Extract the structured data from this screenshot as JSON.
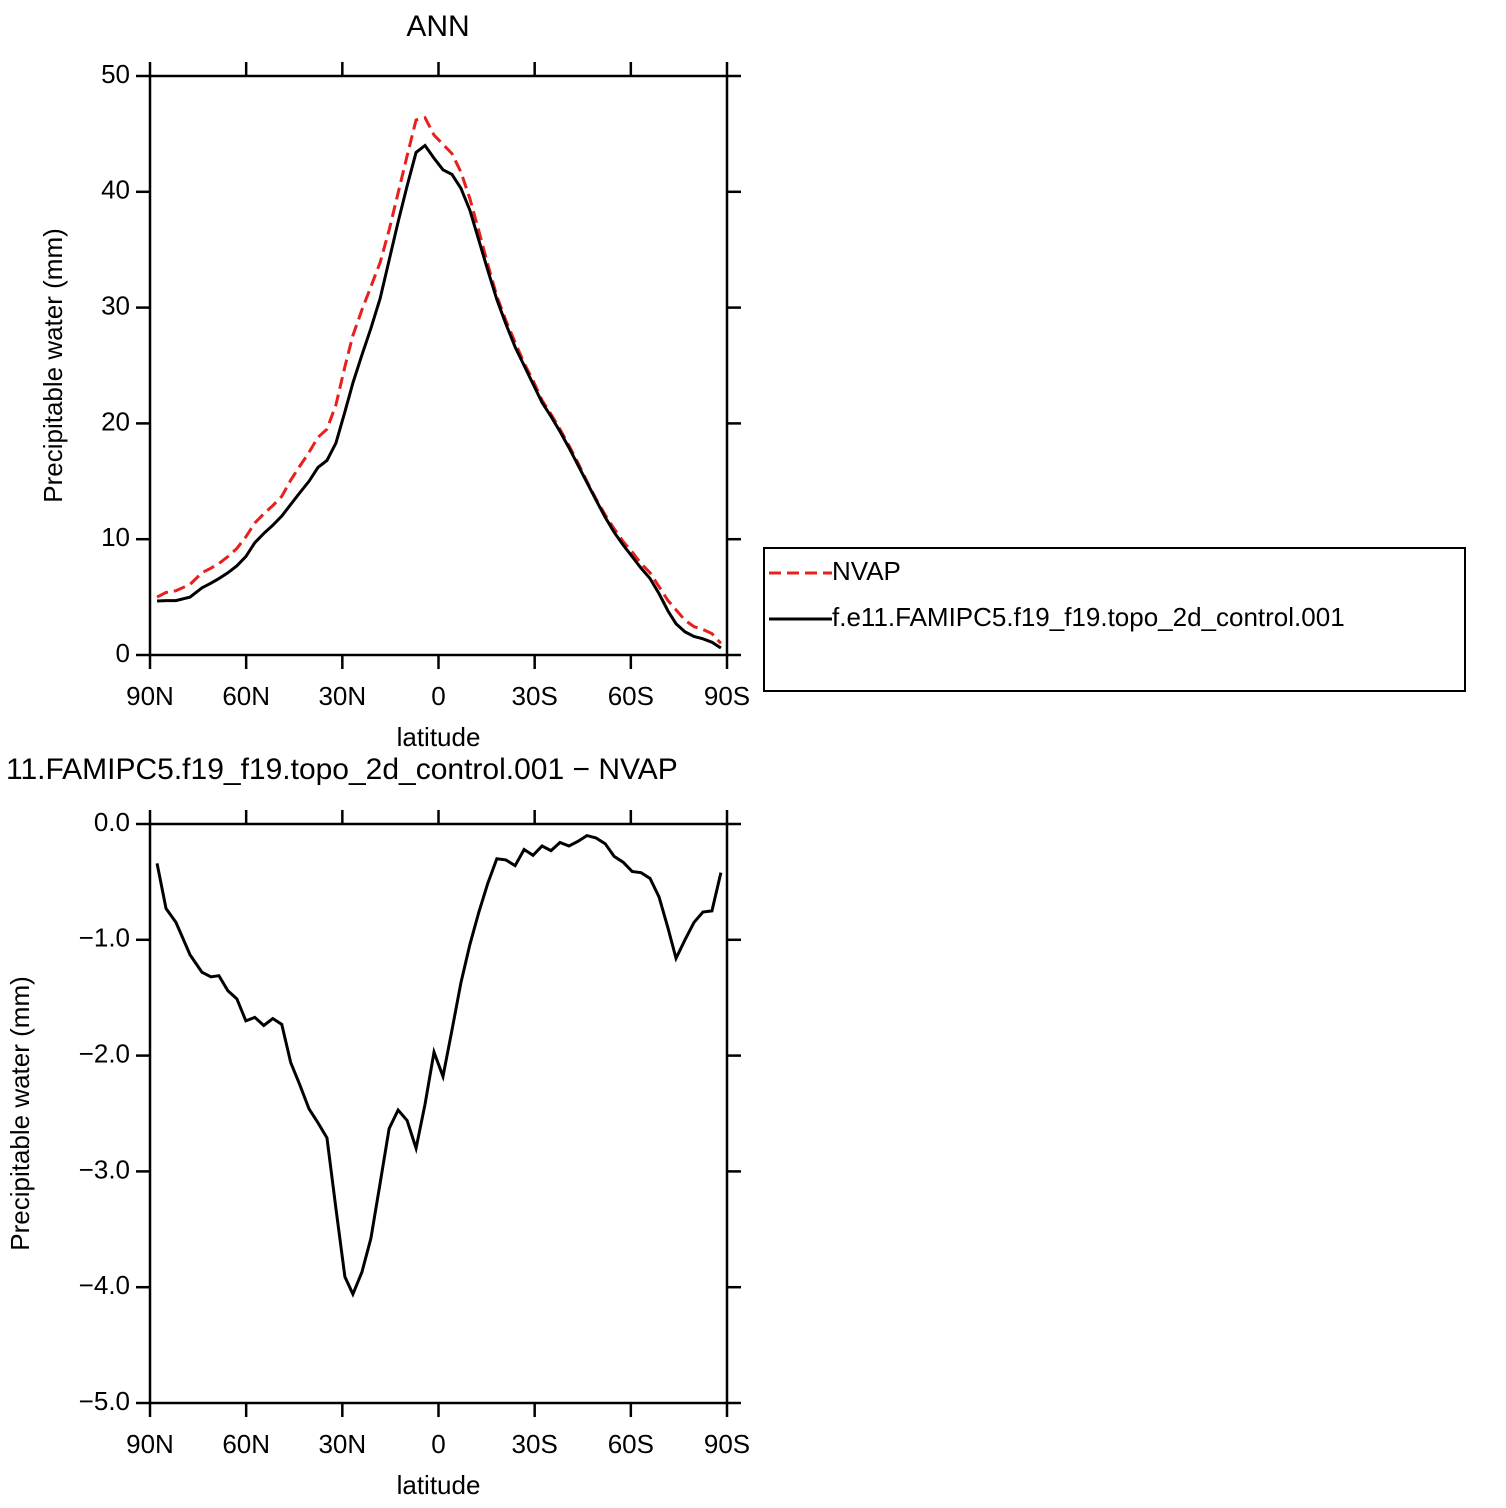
{
  "chart_data": [
    {
      "type": "line",
      "title": "ANN",
      "xlabel": "latitude",
      "ylabel": "Precipitable water (mm)",
      "x": [
        87.8,
        85,
        81.9,
        77.5,
        73.8,
        71,
        68.5,
        65.7,
        62.9,
        60.1,
        57.3,
        54.5,
        51.7,
        48.9,
        46.1,
        43.3,
        40.4,
        37.6,
        34.8,
        32,
        29.2,
        26.7,
        23.9,
        21.1,
        18.2,
        15.4,
        12.6,
        9.8,
        7,
        4.2,
        1.4,
        -1.4,
        -4.2,
        -7,
        -9.8,
        -12.6,
        -15.4,
        -18.2,
        -21,
        -23.9,
        -26.7,
        -29.5,
        -32.3,
        -35.1,
        -37.9,
        -40.7,
        -43.5,
        -46.3,
        -49.1,
        -52,
        -54.8,
        -57.6,
        -60.4,
        -63.2,
        -66,
        -68.8,
        -71.6,
        -74.1,
        -76.9,
        -79.7,
        -82.5,
        -85.3,
        -88.1
      ],
      "series": [
        {
          "name": "NVAP",
          "color": "#e8201c",
          "linestyle": "dashed",
          "values": [
            5.0,
            5.4,
            5.55,
            6.1,
            7.1,
            7.5,
            7.9,
            8.5,
            9.2,
            10.2,
            11.4,
            12.2,
            12.9,
            13.7,
            15.1,
            16.3,
            17.5,
            18.8,
            19.5,
            21.6,
            24.9,
            27.6,
            29.8,
            31.8,
            33.9,
            36.7,
            39.9,
            43.1,
            46.2,
            46.4,
            44.9,
            44.1,
            43.3,
            41.7,
            39.4,
            36.6,
            33.7,
            31.0,
            28.9,
            27.0,
            25.2,
            23.7,
            22.0,
            20.8,
            19.5,
            18.1,
            16.6,
            15.0,
            13.5,
            12.1,
            10.9,
            9.8,
            8.9,
            7.9,
            7.1,
            5.9,
            4.7,
            3.9,
            3.0,
            2.45,
            2.2,
            1.85,
            1.0
          ]
        },
        {
          "name": "f.e11.FAMIPC5.f19_f19.topo_2d_control.001",
          "color": "#000000",
          "linestyle": "solid",
          "values": [
            4.66,
            4.7,
            4.7,
            5.0,
            5.8,
            6.2,
            6.6,
            7.1,
            7.7,
            8.5,
            9.7,
            10.5,
            11.2,
            12.0,
            13.0,
            14.0,
            15.0,
            16.2,
            16.8,
            18.3,
            21.0,
            23.5,
            25.9,
            28.2,
            30.8,
            34.1,
            37.4,
            40.5,
            43.4,
            44.0,
            42.9,
            41.9,
            41.5,
            40.3,
            38.4,
            35.8,
            33.2,
            30.7,
            28.6,
            26.6,
            25.0,
            23.4,
            21.8,
            20.6,
            19.3,
            17.9,
            16.4,
            14.9,
            13.4,
            11.9,
            10.6,
            9.5,
            8.5,
            7.5,
            6.6,
            5.3,
            3.8,
            2.7,
            2.0,
            1.6,
            1.4,
            1.1,
            0.6
          ]
        }
      ],
      "xlim": [
        90,
        -90
      ],
      "xticks": [
        {
          "value": 90,
          "label": "90N"
        },
        {
          "value": 60,
          "label": "60N"
        },
        {
          "value": 30,
          "label": "30N"
        },
        0,
        {
          "value": -30,
          "label": "30S"
        },
        {
          "value": -60,
          "label": "60S"
        },
        {
          "value": -90,
          "label": "90S"
        }
      ],
      "ylim": [
        0,
        50
      ],
      "yticks": [
        0,
        10,
        20,
        30,
        40,
        50
      ],
      "legend": "right"
    },
    {
      "type": "line",
      "title": "11.FAMIPC5.f19_f19.topo_2d_control.001 − NVAP",
      "xlabel": "latitude",
      "ylabel": "Precipitable water (mm)",
      "x": [
        87.8,
        85,
        81.9,
        77.5,
        73.8,
        71,
        68.5,
        65.7,
        62.9,
        60.1,
        57.3,
        54.5,
        51.7,
        48.9,
        46.1,
        43.3,
        40.4,
        37.6,
        34.8,
        32,
        29.2,
        26.7,
        23.9,
        21.1,
        18.2,
        15.4,
        12.6,
        9.8,
        7,
        4.2,
        1.4,
        -1.4,
        -4.2,
        -7,
        -9.8,
        -12.6,
        -15.4,
        -18.2,
        -21,
        -23.9,
        -26.7,
        -29.5,
        -32.3,
        -35.1,
        -37.9,
        -40.7,
        -43.5,
        -46.3,
        -49.1,
        -52,
        -54.8,
        -57.6,
        -60.4,
        -63.2,
        -66,
        -68.8,
        -71.6,
        -74.1,
        -76.9,
        -79.7,
        -82.5,
        -85.3,
        -88.1
      ],
      "series": [
        {
          "color": "#000000",
          "linestyle": "solid",
          "values": [
            -0.34,
            -0.73,
            -0.85,
            -1.13,
            -1.28,
            -1.32,
            -1.31,
            -1.44,
            -1.51,
            -1.7,
            -1.67,
            -1.74,
            -1.68,
            -1.73,
            -2.06,
            -2.25,
            -2.46,
            -2.58,
            -2.71,
            -3.32,
            -3.91,
            -4.06,
            -3.87,
            -3.58,
            -3.1,
            -2.63,
            -2.47,
            -2.56,
            -2.8,
            -2.42,
            -1.97,
            -2.18,
            -1.78,
            -1.37,
            -1.04,
            -0.76,
            -0.51,
            -0.3,
            -0.31,
            -0.36,
            -0.22,
            -0.27,
            -0.19,
            -0.23,
            -0.16,
            -0.19,
            -0.15,
            -0.1,
            -0.12,
            -0.17,
            -0.28,
            -0.33,
            -0.41,
            -0.42,
            -0.47,
            -0.63,
            -0.9,
            -1.16,
            -1.0,
            -0.85,
            -0.76,
            -0.75,
            -0.42
          ]
        }
      ],
      "xlim": [
        90,
        -90
      ],
      "xticks": [
        {
          "value": 90,
          "label": "90N"
        },
        {
          "value": 60,
          "label": "60N"
        },
        {
          "value": 30,
          "label": "30N"
        },
        0,
        {
          "value": -30,
          "label": "30S"
        },
        {
          "value": -60,
          "label": "60S"
        },
        {
          "value": -90,
          "label": "90S"
        }
      ],
      "ylim": [
        -5,
        0
      ],
      "yticks": [
        {
          "value": -5,
          "label": "−5.0"
        },
        {
          "value": -4,
          "label": "−4.0"
        },
        {
          "value": -3,
          "label": "−3.0"
        },
        {
          "value": -2,
          "label": "−2.0"
        },
        {
          "value": -1,
          "label": "−1.0"
        },
        {
          "value": 0,
          "label": "0.0"
        }
      ]
    }
  ]
}
